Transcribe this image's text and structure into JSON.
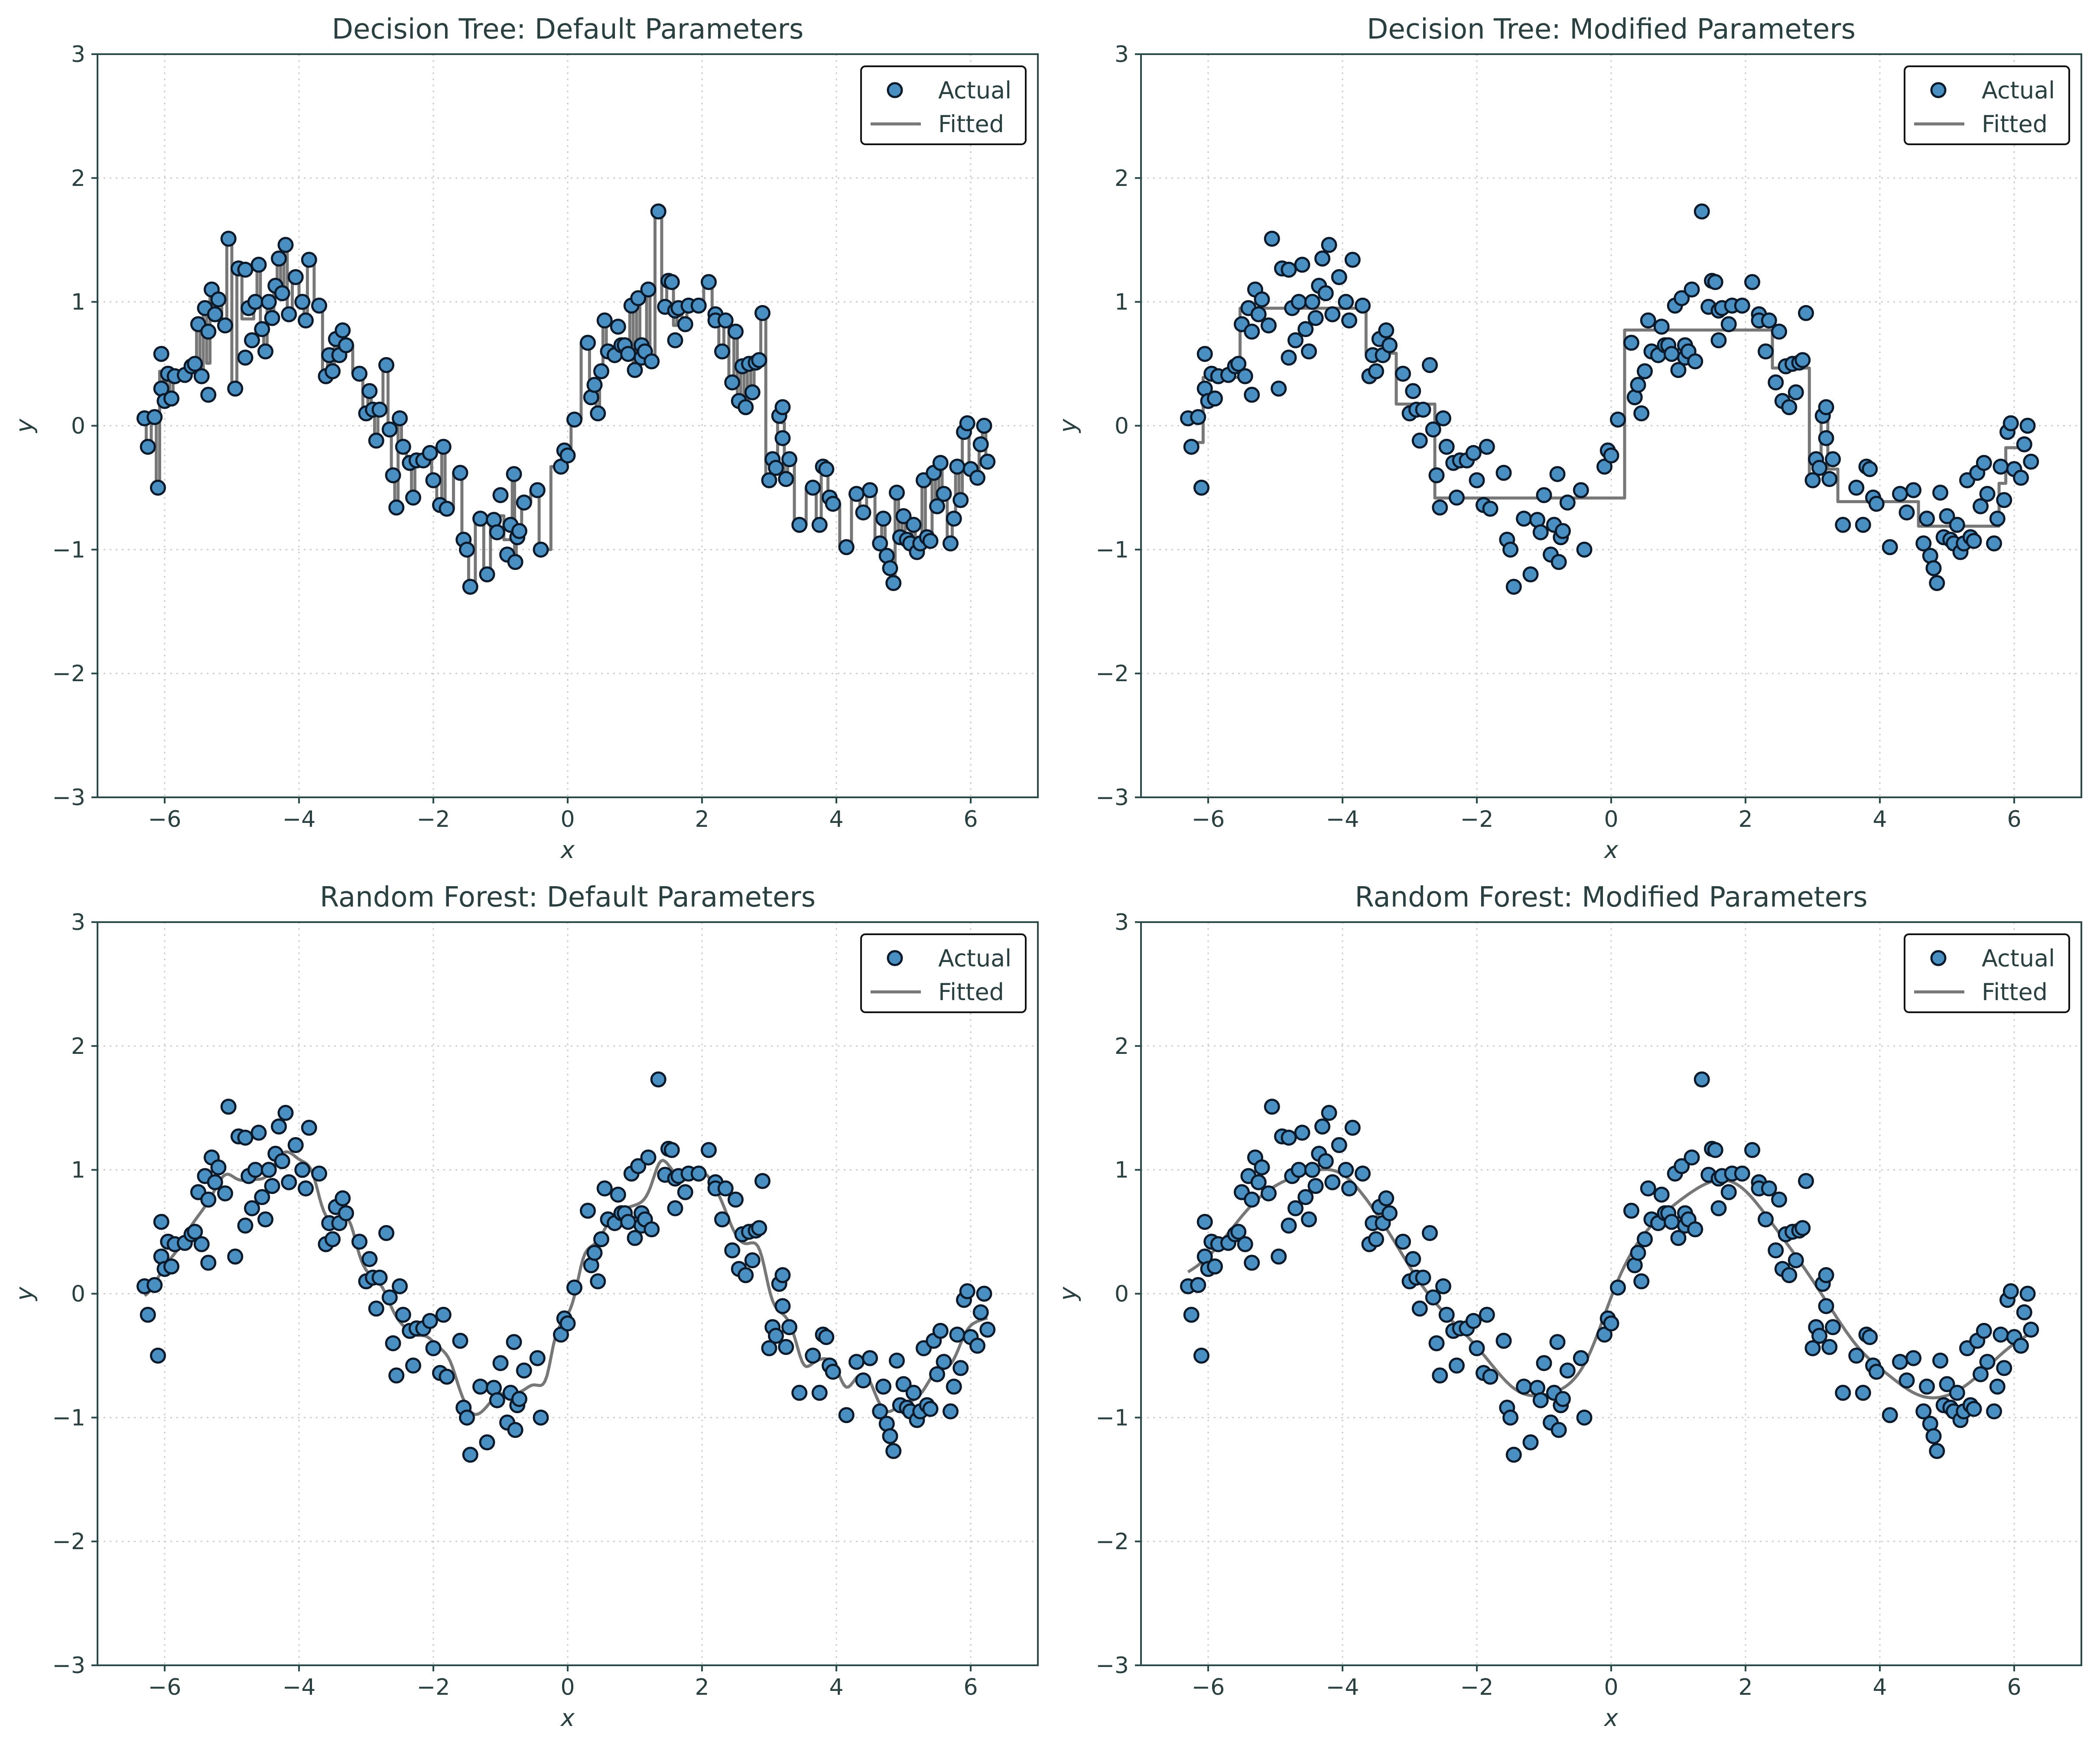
{
  "colors": {
    "actual_fill": "#4a8fc2",
    "actual_edge": "#0a1a2a",
    "fitted_line": "#777777",
    "axis": "#2a4a4a",
    "grid": "#cccccc",
    "text": "#2a3f3f"
  },
  "chart_data": [
    {
      "type": "scatter",
      "title": "Decision Tree: Default Parameters",
      "xlabel": "x",
      "ylabel": "y",
      "xlim": [
        -7,
        7
      ],
      "ylim": [
        -3,
        3
      ],
      "xticks": [
        "−6",
        "−4",
        "−2",
        "0",
        "2",
        "4",
        "6"
      ],
      "xtick_values": [
        -6,
        -4,
        -2,
        0,
        2,
        4,
        6
      ],
      "yticks": [
        "−3",
        "−2",
        "−1",
        "0",
        "1",
        "2",
        "3"
      ],
      "ytick_values": [
        -3,
        -2,
        -1,
        0,
        1,
        2,
        3
      ],
      "grid": true,
      "legend": {
        "placement": "upper right",
        "entries": [
          "Actual",
          "Fitted"
        ]
      },
      "series": [
        {
          "name": "Actual",
          "kind": "scatter",
          "points": [
            [
              -6.3,
              0.06
            ],
            [
              -6.25,
              -0.17
            ],
            [
              -6.15,
              0.07
            ],
            [
              -6.1,
              -0.5
            ],
            [
              -6.05,
              0.58
            ],
            [
              -6.05,
              0.3
            ],
            [
              -6.0,
              0.2
            ],
            [
              -5.95,
              0.42
            ],
            [
              -5.9,
              0.22
            ],
            [
              -5.85,
              0.4
            ],
            [
              -5.7,
              0.41
            ],
            [
              -5.6,
              0.48
            ],
            [
              -5.55,
              0.5
            ],
            [
              -5.5,
              0.82
            ],
            [
              -5.45,
              0.4
            ],
            [
              -5.4,
              0.95
            ],
            [
              -5.35,
              0.76
            ],
            [
              -5.35,
              0.25
            ],
            [
              -5.3,
              1.1
            ],
            [
              -5.25,
              0.9
            ],
            [
              -5.2,
              1.02
            ],
            [
              -5.1,
              0.81
            ],
            [
              -5.05,
              1.51
            ],
            [
              -4.95,
              0.3
            ],
            [
              -4.9,
              1.27
            ],
            [
              -4.8,
              0.55
            ],
            [
              -4.8,
              1.26
            ],
            [
              -4.75,
              0.95
            ],
            [
              -4.7,
              0.69
            ],
            [
              -4.65,
              1.0
            ],
            [
              -4.6,
              1.3
            ],
            [
              -4.55,
              0.78
            ],
            [
              -4.5,
              0.6
            ],
            [
              -4.45,
              1.0
            ],
            [
              -4.4,
              0.87
            ],
            [
              -4.35,
              1.13
            ],
            [
              -4.3,
              1.35
            ],
            [
              -4.25,
              1.07
            ],
            [
              -4.2,
              1.46
            ],
            [
              -4.15,
              0.9
            ],
            [
              -4.05,
              1.2
            ],
            [
              -3.95,
              1.0
            ],
            [
              -3.9,
              0.85
            ],
            [
              -3.85,
              1.34
            ],
            [
              -3.7,
              0.97
            ],
            [
              -3.6,
              0.4
            ],
            [
              -3.55,
              0.57
            ],
            [
              -3.5,
              0.44
            ],
            [
              -3.45,
              0.7
            ],
            [
              -3.4,
              0.57
            ],
            [
              -3.35,
              0.77
            ],
            [
              -3.3,
              0.65
            ],
            [
              -3.1,
              0.42
            ],
            [
              -3.0,
              0.1
            ],
            [
              -2.95,
              0.28
            ],
            [
              -2.9,
              0.13
            ],
            [
              -2.85,
              -0.12
            ],
            [
              -2.8,
              0.13
            ],
            [
              -2.7,
              0.49
            ],
            [
              -2.65,
              -0.03
            ],
            [
              -2.6,
              -0.4
            ],
            [
              -2.55,
              -0.66
            ],
            [
              -2.5,
              0.06
            ],
            [
              -2.45,
              -0.17
            ],
            [
              -2.35,
              -0.3
            ],
            [
              -2.3,
              -0.58
            ],
            [
              -2.25,
              -0.28
            ],
            [
              -2.15,
              -0.28
            ],
            [
              -2.05,
              -0.22
            ],
            [
              -2.0,
              -0.44
            ],
            [
              -1.9,
              -0.64
            ],
            [
              -1.85,
              -0.17
            ],
            [
              -1.8,
              -0.67
            ],
            [
              -1.6,
              -0.38
            ],
            [
              -1.55,
              -0.92
            ],
            [
              -1.5,
              -1.0
            ],
            [
              -1.45,
              -1.3
            ],
            [
              -1.3,
              -0.75
            ],
            [
              -1.2,
              -1.2
            ],
            [
              -1.1,
              -0.76
            ],
            [
              -1.05,
              -0.86
            ],
            [
              -1.0,
              -0.56
            ],
            [
              -0.9,
              -1.04
            ],
            [
              -0.85,
              -0.8
            ],
            [
              -0.8,
              -0.39
            ],
            [
              -0.78,
              -1.1
            ],
            [
              -0.75,
              -0.9
            ],
            [
              -0.72,
              -0.85
            ],
            [
              -0.65,
              -0.62
            ],
            [
              -0.45,
              -0.52
            ],
            [
              -0.4,
              -1.0
            ],
            [
              -0.1,
              -0.33
            ],
            [
              -0.05,
              -0.2
            ],
            [
              0.0,
              -0.24
            ],
            [
              0.1,
              0.05
            ],
            [
              0.3,
              0.67
            ],
            [
              0.35,
              0.23
            ],
            [
              0.4,
              0.33
            ],
            [
              0.45,
              0.1
            ],
            [
              0.5,
              0.44
            ],
            [
              0.55,
              0.85
            ],
            [
              0.6,
              0.6
            ],
            [
              0.7,
              0.57
            ],
            [
              0.75,
              0.8
            ],
            [
              0.8,
              0.65
            ],
            [
              0.85,
              0.65
            ],
            [
              0.9,
              0.58
            ],
            [
              0.95,
              0.97
            ],
            [
              1.0,
              0.45
            ],
            [
              1.05,
              1.03
            ],
            [
              1.1,
              0.55
            ],
            [
              1.1,
              0.65
            ],
            [
              1.15,
              0.6
            ],
            [
              1.2,
              1.1
            ],
            [
              1.25,
              0.52
            ],
            [
              1.35,
              1.73
            ],
            [
              1.45,
              0.96
            ],
            [
              1.5,
              1.17
            ],
            [
              1.55,
              1.16
            ],
            [
              1.6,
              0.69
            ],
            [
              1.6,
              0.93
            ],
            [
              1.65,
              0.95
            ],
            [
              1.75,
              0.82
            ],
            [
              1.8,
              0.97
            ],
            [
              1.95,
              0.97
            ],
            [
              2.1,
              1.16
            ],
            [
              2.2,
              0.9
            ],
            [
              2.2,
              0.85
            ],
            [
              2.3,
              0.6
            ],
            [
              2.35,
              0.85
            ],
            [
              2.45,
              0.35
            ],
            [
              2.5,
              0.76
            ],
            [
              2.55,
              0.2
            ],
            [
              2.6,
              0.48
            ],
            [
              2.65,
              0.15
            ],
            [
              2.7,
              0.5
            ],
            [
              2.75,
              0.27
            ],
            [
              2.8,
              0.51
            ],
            [
              2.85,
              0.53
            ],
            [
              2.9,
              0.91
            ],
            [
              3.0,
              -0.44
            ],
            [
              3.05,
              -0.27
            ],
            [
              3.1,
              -0.34
            ],
            [
              3.15,
              0.08
            ],
            [
              3.2,
              -0.1
            ],
            [
              3.2,
              0.15
            ],
            [
              3.25,
              -0.43
            ],
            [
              3.3,
              -0.27
            ],
            [
              3.45,
              -0.8
            ],
            [
              3.65,
              -0.5
            ],
            [
              3.75,
              -0.8
            ],
            [
              3.8,
              -0.33
            ],
            [
              3.85,
              -0.35
            ],
            [
              3.9,
              -0.58
            ],
            [
              3.95,
              -0.63
            ],
            [
              4.15,
              -0.98
            ],
            [
              4.3,
              -0.55
            ],
            [
              4.4,
              -0.7
            ],
            [
              4.5,
              -0.52
            ],
            [
              4.65,
              -0.95
            ],
            [
              4.7,
              -0.75
            ],
            [
              4.75,
              -1.05
            ],
            [
              4.8,
              -1.15
            ],
            [
              4.85,
              -1.27
            ],
            [
              4.9,
              -0.54
            ],
            [
              4.95,
              -0.9
            ],
            [
              5.0,
              -0.73
            ],
            [
              5.05,
              -0.92
            ],
            [
              5.1,
              -0.95
            ],
            [
              5.15,
              -0.8
            ],
            [
              5.2,
              -1.02
            ],
            [
              5.25,
              -0.95
            ],
            [
              5.3,
              -0.44
            ],
            [
              5.35,
              -0.9
            ],
            [
              5.4,
              -0.93
            ],
            [
              5.45,
              -0.38
            ],
            [
              5.5,
              -0.65
            ],
            [
              5.55,
              -0.3
            ],
            [
              5.6,
              -0.55
            ],
            [
              5.7,
              -0.95
            ],
            [
              5.75,
              -0.75
            ],
            [
              5.8,
              -0.33
            ],
            [
              5.85,
              -0.6
            ],
            [
              5.9,
              -0.05
            ],
            [
              5.95,
              0.02
            ],
            [
              6.0,
              -0.35
            ],
            [
              6.1,
              -0.42
            ],
            [
              6.15,
              -0.15
            ],
            [
              6.2,
              0.0
            ],
            [
              6.25,
              -0.29
            ]
          ]
        },
        {
          "name": "Fitted",
          "kind": "line",
          "model": "tree",
          "max_depth": 12
        }
      ]
    },
    {
      "type": "scatter",
      "title": "Decision Tree: Modified Parameters",
      "xlabel": "x",
      "ylabel": "y",
      "xlim": [
        -7,
        7
      ],
      "ylim": [
        -3,
        3
      ],
      "xticks": [
        "−6",
        "−4",
        "−2",
        "0",
        "2",
        "4",
        "6"
      ],
      "xtick_values": [
        -6,
        -4,
        -2,
        0,
        2,
        4,
        6
      ],
      "yticks": [
        "−3",
        "−2",
        "−1",
        "0",
        "1",
        "2",
        "3"
      ],
      "ytick_values": [
        -3,
        -2,
        -1,
        0,
        1,
        2,
        3
      ],
      "grid": true,
      "legend": {
        "placement": "upper right",
        "entries": [
          "Actual",
          "Fitted"
        ]
      },
      "series": [
        {
          "name": "Actual",
          "kind": "scatter",
          "points": "same"
        },
        {
          "name": "Fitted",
          "kind": "line",
          "model": "tree",
          "max_depth": 4
        }
      ]
    },
    {
      "type": "scatter",
      "title": "Random Forest: Default Parameters",
      "xlabel": "x",
      "ylabel": "y",
      "xlim": [
        -7,
        7
      ],
      "ylim": [
        -3,
        3
      ],
      "xticks": [
        "−6",
        "−4",
        "−2",
        "0",
        "2",
        "4",
        "6"
      ],
      "xtick_values": [
        -6,
        -4,
        -2,
        0,
        2,
        4,
        6
      ],
      "yticks": [
        "−3",
        "−2",
        "−1",
        "0",
        "1",
        "2",
        "3"
      ],
      "ytick_values": [
        -3,
        -2,
        -1,
        0,
        1,
        2,
        3
      ],
      "grid": true,
      "legend": {
        "placement": "upper right",
        "entries": [
          "Actual",
          "Fitted"
        ]
      },
      "series": [
        {
          "name": "Actual",
          "kind": "scatter",
          "points": "same"
        },
        {
          "name": "Fitted",
          "kind": "line",
          "model": "smooth",
          "bandwidth": 0.13
        }
      ]
    },
    {
      "type": "scatter",
      "title": "Random Forest: Modified Parameters",
      "xlabel": "x",
      "ylabel": "y",
      "xlim": [
        -7,
        7
      ],
      "ylim": [
        -3,
        3
      ],
      "xticks": [
        "−6",
        "−4",
        "−2",
        "0",
        "2",
        "4",
        "6"
      ],
      "xtick_values": [
        -6,
        -4,
        -2,
        0,
        2,
        4,
        6
      ],
      "yticks": [
        "−3",
        "−2",
        "−1",
        "0",
        "1",
        "2",
        "3"
      ],
      "ytick_values": [
        -3,
        -2,
        -1,
        0,
        1,
        2,
        3
      ],
      "grid": true,
      "legend": {
        "placement": "upper right",
        "entries": [
          "Actual",
          "Fitted"
        ]
      },
      "series": [
        {
          "name": "Actual",
          "kind": "scatter",
          "points": "same"
        },
        {
          "name": "Fitted",
          "kind": "line",
          "model": "smooth",
          "bandwidth": 0.38
        }
      ]
    }
  ]
}
